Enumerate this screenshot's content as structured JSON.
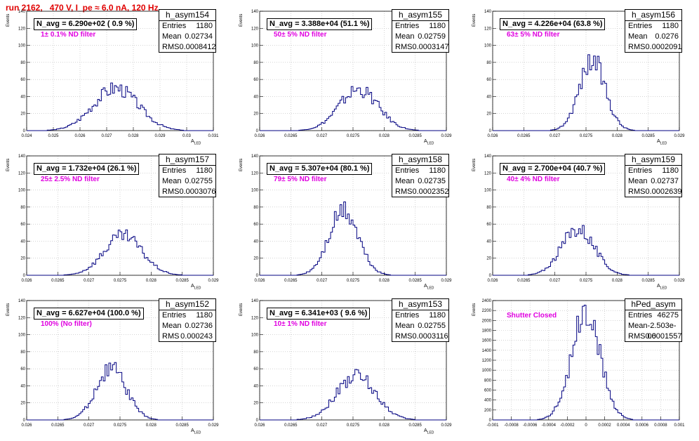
{
  "header": {
    "title": "run 2162,   470 V, I_pe ≈ 6.0 nA, 120 Hz"
  },
  "colors": {
    "histogram_line": "#000080",
    "filter_text": "#e000e0",
    "title_text": "#e00000",
    "grid": "#bbbbbb"
  },
  "chart_data": [
    {
      "type": "bar",
      "name": "h_asym154",
      "navg": "N_avg = 6.290e+02 ( 0.9 %)",
      "filter": "1± 0.1% ND filter",
      "ylabel": "Events",
      "xlabel": "A_LED",
      "entries": "1180",
      "mean": "0.02734",
      "rms": "0.0008412",
      "xlim": [
        0.024,
        0.031
      ],
      "ylim": [
        0,
        140
      ],
      "xticks": [
        "0.024",
        "0.025",
        "0.026",
        "0.027",
        "0.028",
        "0.029",
        "0.03",
        "0.031"
      ],
      "yticks": [
        "0",
        "20",
        "40",
        "60",
        "80",
        "100",
        "120",
        "140"
      ],
      "peak_mean": 0.02734,
      "peak_rms": 0.0008412,
      "peak_height": 50
    },
    {
      "type": "bar",
      "name": "h_asym155",
      "navg": "N_avg = 3.388e+04 (51.1 %)",
      "filter": "50± 5% ND filter",
      "ylabel": "Events",
      "xlabel": "A_LED",
      "entries": "1180",
      "mean": "0.02759",
      "rms": "0.0003147",
      "xlim": [
        0.026,
        0.029
      ],
      "ylim": [
        0,
        140
      ],
      "xticks": [
        "0.026",
        "0.0265",
        "0.027",
        "0.0275",
        "0.028",
        "0.0285",
        "0.029"
      ],
      "yticks": [
        "0",
        "20",
        "40",
        "60",
        "80",
        "100",
        "120",
        "140"
      ],
      "peak_mean": 0.02759,
      "peak_rms": 0.0003147,
      "peak_height": 48
    },
    {
      "type": "bar",
      "name": "h_asym156",
      "navg": "N_avg = 4.226e+04 (63.8 %)",
      "filter": "63± 5% ND filter",
      "ylabel": "Events",
      "xlabel": "A_LED",
      "entries": "1180",
      "mean": "0.0276",
      "rms": "0.0002091",
      "xlim": [
        0.026,
        0.029
      ],
      "ylim": [
        0,
        140
      ],
      "xticks": [
        "0.026",
        "0.0265",
        "0.027",
        "0.0275",
        "0.028",
        "0.0285",
        "0.029"
      ],
      "yticks": [
        "0",
        "20",
        "40",
        "60",
        "80",
        "100",
        "120",
        "140"
      ],
      "peak_mean": 0.0276,
      "peak_rms": 0.0002091,
      "peak_height": 82
    },
    {
      "type": "bar",
      "name": "h_asym157",
      "navg": "N_avg = 1.732e+04 (26.1 %)",
      "filter": "25± 2.5% ND filter",
      "ylabel": "Events",
      "xlabel": "A_LED",
      "entries": "1180",
      "mean": "0.02755",
      "rms": "0.0003076",
      "xlim": [
        0.026,
        0.029
      ],
      "ylim": [
        0,
        140
      ],
      "xticks": [
        "0.026",
        "0.0265",
        "0.027",
        "0.0275",
        "0.028",
        "0.0285",
        "0.029"
      ],
      "yticks": [
        "0",
        "20",
        "40",
        "60",
        "80",
        "100",
        "120",
        "140"
      ],
      "peak_mean": 0.02755,
      "peak_rms": 0.0003076,
      "peak_height": 46
    },
    {
      "type": "bar",
      "name": "h_asym158",
      "navg": "N_avg = 5.307e+04 (80.1 %)",
      "filter": "79± 5% ND filter",
      "ylabel": "Events",
      "xlabel": "A_LED",
      "entries": "1180",
      "mean": "0.02735",
      "rms": "0.0002352",
      "xlim": [
        0.026,
        0.029
      ],
      "ylim": [
        0,
        140
      ],
      "xticks": [
        "0.026",
        "0.0265",
        "0.027",
        "0.0275",
        "0.028",
        "0.0285",
        "0.029"
      ],
      "yticks": [
        "0",
        "20",
        "40",
        "60",
        "80",
        "100",
        "120",
        "140"
      ],
      "peak_mean": 0.02735,
      "peak_rms": 0.0002352,
      "peak_height": 75
    },
    {
      "type": "bar",
      "name": "h_asym159",
      "navg": "N_avg = 2.700e+04 (40.7 %)",
      "filter": "40± 4% ND filter",
      "ylabel": "Events",
      "xlabel": "A_LED",
      "entries": "1180",
      "mean": "0.02737",
      "rms": "0.0002639",
      "xlim": [
        0.026,
        0.029
      ],
      "ylim": [
        0,
        140
      ],
      "xticks": [
        "0.026",
        "0.0265",
        "0.027",
        "0.0275",
        "0.028",
        "0.0285",
        "0.029"
      ],
      "yticks": [
        "0",
        "20",
        "40",
        "60",
        "80",
        "100",
        "120",
        "140"
      ],
      "peak_mean": 0.02737,
      "peak_rms": 0.0002639,
      "peak_height": 55
    },
    {
      "type": "bar",
      "name": "h_asym152",
      "navg": "N_avg = 6.627e+04 (100.0 %)",
      "filter": "100% (No filter)",
      "ylabel": "Events",
      "xlabel": "A_LED",
      "entries": "1180",
      "mean": "0.02736",
      "rms": "0.000243",
      "xlim": [
        0.026,
        0.029
      ],
      "ylim": [
        0,
        140
      ],
      "xticks": [
        "0.026",
        "0.0265",
        "0.027",
        "0.0275",
        "0.028",
        "0.0285",
        "0.029"
      ],
      "yticks": [
        "0",
        "20",
        "40",
        "60",
        "80",
        "100",
        "120",
        "140"
      ],
      "peak_mean": 0.02736,
      "peak_rms": 0.000243,
      "peak_height": 60
    },
    {
      "type": "bar",
      "name": "h_asym153",
      "navg": "N_avg = 6.341e+03 ( 9.6 %)",
      "filter": "10± 1% ND filter",
      "ylabel": "Events",
      "xlabel": "A_LED",
      "entries": "1180",
      "mean": "0.02755",
      "rms": "0.0003116",
      "xlim": [
        0.026,
        0.029
      ],
      "ylim": [
        0,
        140
      ],
      "xticks": [
        "0.026",
        "0.0265",
        "0.027",
        "0.0275",
        "0.028",
        "0.0285",
        "0.029"
      ],
      "yticks": [
        "0",
        "20",
        "40",
        "60",
        "80",
        "100",
        "120",
        "140"
      ],
      "peak_mean": 0.02755,
      "peak_rms": 0.0003116,
      "peak_height": 52
    },
    {
      "type": "bar",
      "name": "hPed_asym",
      "navg": "",
      "filter": "Shutter Closed",
      "ylabel": "Events",
      "xlabel": "",
      "entries": "46275",
      "mean": "-2.503e-06",
      "rms": "0.0001557",
      "xlim": [
        -0.001,
        0.001
      ],
      "ylim": [
        0,
        2400
      ],
      "xticks": [
        "-0.001",
        "-0.0008",
        "-0.0006",
        "-0.0004",
        "-0.0002",
        "0",
        "0.0002",
        "0.0004",
        "0.0006",
        "0.0008",
        "0.001"
      ],
      "yticks": [
        "0",
        "200",
        "400",
        "600",
        "800",
        "1000",
        "1200",
        "1400",
        "1600",
        "1800",
        "2000",
        "2200",
        "2400"
      ],
      "peak_mean": -2.5e-06,
      "peak_rms": 0.0001557,
      "peak_height": 2100
    }
  ]
}
